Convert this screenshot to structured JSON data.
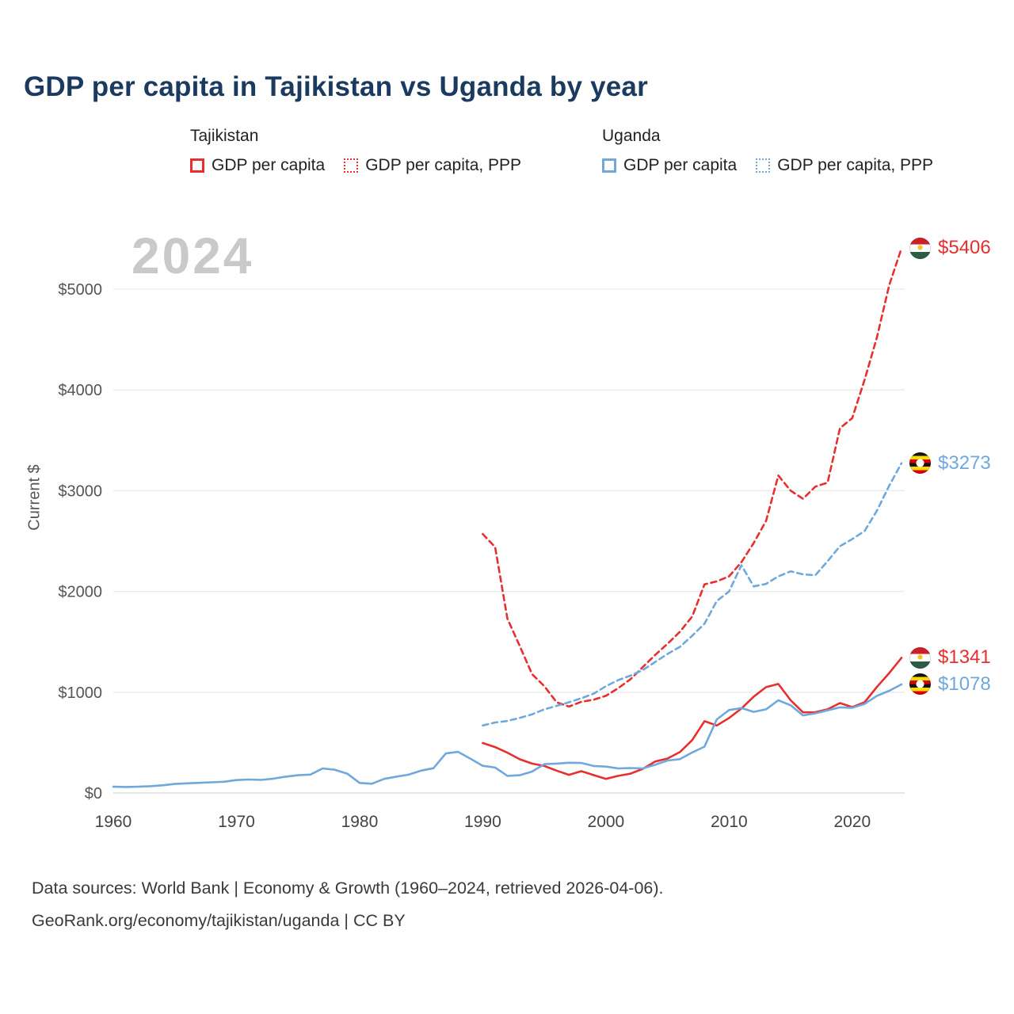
{
  "title": "GDP per capita in Tajikistan vs Uganda by year",
  "watermark": "2024",
  "colors": {
    "tajikistan": "#e62f2e",
    "uganda": "#6fa8dc",
    "title": "#1b3a5f",
    "watermark": "#c9c9c9",
    "gridline": "#e9e9e9",
    "axis_text": "#555555"
  },
  "legend": {
    "groups": [
      {
        "country": "Tajikistan",
        "color": "#e62f2e",
        "items": [
          {
            "label": "GDP per capita",
            "style": "solid"
          },
          {
            "label": "GDP per capita, PPP",
            "style": "dotted"
          }
        ]
      },
      {
        "country": "Uganda",
        "color": "#6fa8dc",
        "items": [
          {
            "label": "GDP per capita",
            "style": "solid"
          },
          {
            "label": "GDP per capita, PPP",
            "style": "dotted"
          }
        ]
      }
    ]
  },
  "chart_data": {
    "type": "line",
    "title": "GDP per capita in Tajikistan vs Uganda by year",
    "xlabel": "",
    "ylabel": "Current $",
    "ylim": [
      0,
      5500
    ],
    "xlim": [
      1960,
      2024
    ],
    "grid": true,
    "yticks": [
      0,
      1000,
      2000,
      3000,
      4000,
      5000
    ],
    "ytick_labels": [
      "$0",
      "$1000",
      "$2000",
      "$3000",
      "$4000",
      "$5000"
    ],
    "xticks": [
      1960,
      1970,
      1980,
      1990,
      2000,
      2010,
      2020
    ],
    "series": [
      {
        "id": "tajikistan-gdp",
        "name": "Tajikistan GDP per capita",
        "color": "#e62f2e",
        "dash": "solid",
        "start_year": 1990,
        "values": [
          496,
          455,
          400,
          335,
          292,
          268,
          222,
          180,
          216,
          178,
          140,
          170,
          192,
          240,
          312,
          342,
          406,
          524,
          712,
          670,
          744,
          838,
          956,
          1050,
          1082,
          920,
          800,
          802,
          830,
          892,
          852,
          900,
          1052,
          1190,
          1341
        ]
      },
      {
        "id": "tajikistan-gdp-ppp",
        "name": "Tajikistan GDP per capita, PPP",
        "color": "#e62f2e",
        "dash": "dashed",
        "start_year": 1990,
        "values": [
          2570,
          2440,
          1730,
          1460,
          1180,
          1060,
          900,
          858,
          905,
          925,
          965,
          1040,
          1130,
          1250,
          1370,
          1480,
          1600,
          1750,
          2070,
          2100,
          2150,
          2290,
          2480,
          2700,
          3150,
          3000,
          2920,
          3040,
          3080,
          3620,
          3720,
          4100,
          4520,
          5040,
          5406
        ]
      },
      {
        "id": "uganda-gdp",
        "name": "Uganda GDP per capita",
        "color": "#6fa8dc",
        "dash": "solid",
        "start_year": 1960,
        "values": [
          62,
          60,
          62,
          68,
          76,
          90,
          96,
          101,
          106,
          112,
          128,
          134,
          130,
          142,
          162,
          176,
          182,
          244,
          230,
          192,
          100,
          92,
          140,
          162,
          182,
          222,
          246,
          392,
          408,
          340,
          270,
          252,
          170,
          176,
          212,
          286,
          292,
          300,
          298,
          268,
          262,
          244,
          248,
          244,
          280,
          322,
          336,
          402,
          460,
          730,
          823,
          843,
          805,
          830,
          920,
          870,
          770,
          790,
          820,
          850,
          846,
          884,
          964,
          1014,
          1078
        ]
      },
      {
        "id": "uganda-gdp-ppp",
        "name": "Uganda GDP per capita, PPP",
        "color": "#6fa8dc",
        "dash": "dashed",
        "start_year": 1990,
        "values": [
          670,
          700,
          715,
          745,
          780,
          830,
          865,
          900,
          940,
          985,
          1060,
          1120,
          1165,
          1220,
          1300,
          1380,
          1450,
          1560,
          1680,
          1905,
          2000,
          2260,
          2050,
          2075,
          2150,
          2200,
          2170,
          2160,
          2300,
          2450,
          2520,
          2600,
          2800,
          3050,
          3273
        ]
      }
    ],
    "end_labels": [
      {
        "text": "$5406",
        "value": 5406,
        "color": "#e62f2e",
        "flag": "tajikistan"
      },
      {
        "text": "$3273",
        "value": 3273,
        "color": "#6fa8dc",
        "flag": "uganda"
      },
      {
        "text": "$1341",
        "value": 1341,
        "color": "#e62f2e",
        "flag": "tajikistan"
      },
      {
        "text": "$1078",
        "value": 1078,
        "color": "#6fa8dc",
        "flag": "uganda"
      }
    ]
  },
  "footer": {
    "line1": "Data sources: World Bank | Economy & Growth (1960–2024, retrieved 2026-04-06).",
    "line2": "GeoRank.org/economy/tajikistan/uganda | CC BY"
  }
}
